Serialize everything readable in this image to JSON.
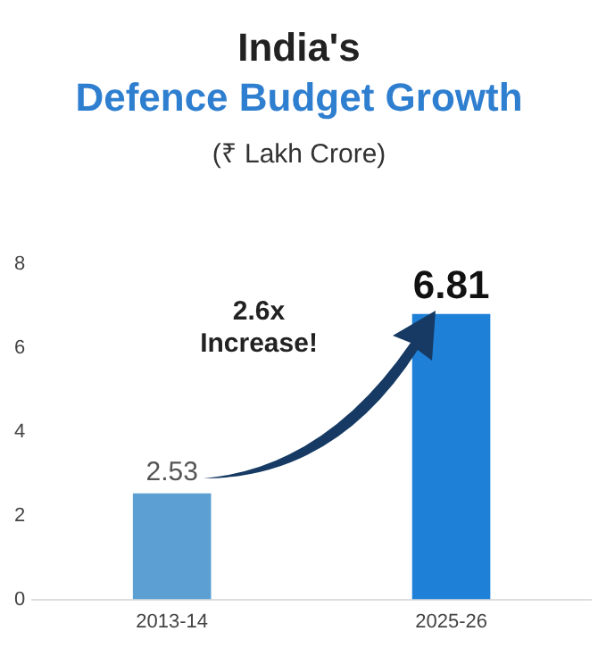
{
  "chart_data": {
    "type": "bar",
    "title": "India's",
    "subtitle": "Defence Budget Growth",
    "annotations": [
      "(₹ Lakh Crore)",
      "2.6x Increase!"
    ],
    "categories": [
      "2013-14",
      "2025-26"
    ],
    "values": [
      2.53,
      6.81
    ],
    "colors": [
      "#5b9fd3",
      "#1f80d8"
    ],
    "ylim": [
      0,
      8
    ],
    "yticks": [
      0,
      2,
      4,
      6,
      8
    ],
    "grid": false,
    "legend": false,
    "data_labels": true
  }
}
